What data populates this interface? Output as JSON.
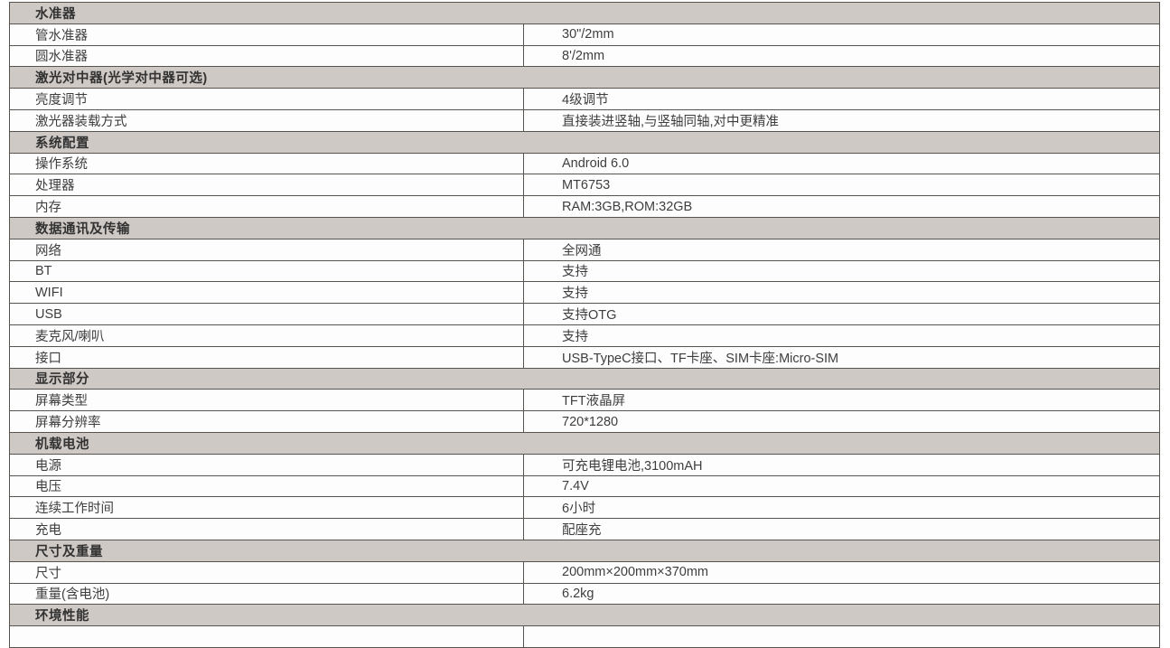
{
  "spec_table": {
    "sections": [
      {
        "title": "水准器",
        "rows": [
          {
            "label": "管水准器",
            "value": "30\"/2mm"
          },
          {
            "label": "圆水准器",
            "value": "8'/2mm"
          }
        ]
      },
      {
        "title": "激光对中器(光学对中器可选)",
        "rows": [
          {
            "label": "亮度调节",
            "value": "4级调节"
          },
          {
            "label": "激光器装载方式",
            "value": "直接装进竖轴,与竖轴同轴,对中更精准"
          }
        ]
      },
      {
        "title": "系统配置",
        "rows": [
          {
            "label": "操作系统",
            "value": "Android 6.0"
          },
          {
            "label": "处理器",
            "value": "MT6753"
          },
          {
            "label": "内存",
            "value": "RAM:3GB,ROM:32GB"
          }
        ]
      },
      {
        "title": "数据通讯及传输",
        "rows": [
          {
            "label": "网络",
            "value": "全网通"
          },
          {
            "label": "BT",
            "value": "支持"
          },
          {
            "label": "WIFI",
            "value": "支持"
          },
          {
            "label": "USB",
            "value": "支持OTG"
          },
          {
            "label": "麦克风/喇叭",
            "value": "支持"
          },
          {
            "label": "接口",
            "value": "USB-TypeC接口、TF卡座、SIM卡座:Micro-SIM"
          }
        ]
      },
      {
        "title": "显示部分",
        "rows": [
          {
            "label": "屏幕类型",
            "value": "TFT液晶屏"
          },
          {
            "label": "屏幕分辨率",
            "value": "720*1280"
          }
        ]
      },
      {
        "title": "机载电池",
        "rows": [
          {
            "label": "电源",
            "value": "可充电锂电池,3100mAH"
          },
          {
            "label": "电压",
            "value": "7.4V"
          },
          {
            "label": "连续工作时间",
            "value": "6小时"
          },
          {
            "label": "充电",
            "value": "配座充"
          }
        ]
      },
      {
        "title": "尺寸及重量",
        "rows": [
          {
            "label": "尺寸",
            "value": "200mm×200mm×370mm"
          },
          {
            "label": "重量(含电池)",
            "value": "6.2kg"
          }
        ]
      },
      {
        "title": "环境性能",
        "rows": []
      }
    ],
    "colors": {
      "section_header_bg": "#cfc9c5",
      "row_bg": "#fdfdfd",
      "border": "#57534f",
      "text": "#3e3e3e"
    }
  }
}
